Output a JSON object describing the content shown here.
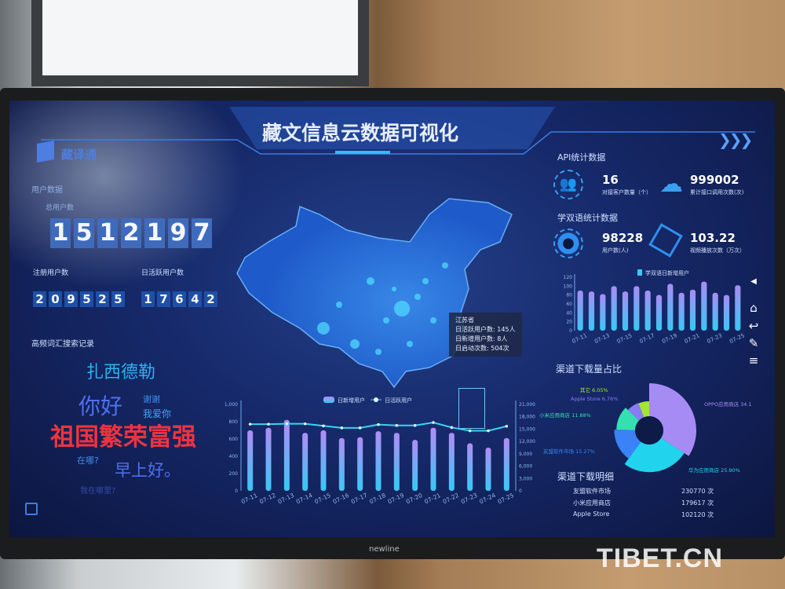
{
  "logo": {
    "text": "藏译通"
  },
  "title": "藏文信息云数据可视化",
  "user_data": {
    "heading": "用户数据",
    "total_label": "总用户数",
    "total": "1512197",
    "registered_label": "注册用户数",
    "registered": "209525",
    "daily_active_label": "日活跃用户数",
    "daily_active": "17642"
  },
  "word_cloud": {
    "heading": "高频词汇搜索记录",
    "words": [
      {
        "text": "扎西德勒",
        "color": "#2fb0f0"
      },
      {
        "text": "你好",
        "color": "#4f6ff0"
      },
      {
        "text": "谢谢",
        "color": "#3f8ff0"
      },
      {
        "text": "我爱你",
        "color": "#3fa8f5"
      },
      {
        "text": "祖国繁荣富强",
        "color": "#ee3340"
      },
      {
        "text": "在哪?",
        "color": "#3f8ff0"
      },
      {
        "text": "早上好。",
        "color": "#4f6ff0"
      },
      {
        "text": "我在哪里?",
        "color": "#3f5fcf"
      }
    ]
  },
  "map": {
    "tooltip": {
      "province": "江苏省",
      "active": "日活跃用户数: 145人",
      "new": "日新增用户数: 8人",
      "launches": "日启动次数: 504次"
    }
  },
  "api": {
    "heading": "API统计数据",
    "clients": "16",
    "clients_label": "对接客户数量（个）",
    "calls": "999002",
    "calls_label": "累计接口调用次数(次)"
  },
  "bilingual": {
    "heading": "学双语统计数据",
    "users": "98228",
    "users_label": "用户数(人)",
    "plays": "103.22",
    "plays_label": "视频播放次数（万次）"
  },
  "nav": {
    "collapse": "◀",
    "home": "⌂",
    "back": "↩",
    "edit": "✎",
    "menu": "≡"
  },
  "chart_data": [
    {
      "type": "bar",
      "legend": [
        "学双语日新增用户"
      ],
      "categories": [
        "07-11",
        "07-12",
        "07-13",
        "07-14",
        "07-15",
        "07-16",
        "07-17",
        "07-18",
        "07-19",
        "07-20",
        "07-21",
        "07-22",
        "07-23",
        "07-24",
        "07-25"
      ],
      "tick_labels_x": [
        "07-11",
        "07-13",
        "07-15",
        "07-17",
        "07-19",
        "07-21",
        "07-23",
        "07-25"
      ],
      "values": [
        90,
        88,
        82,
        100,
        88,
        100,
        90,
        80,
        105,
        85,
        92,
        110,
        85,
        80,
        102
      ],
      "ylim": [
        0,
        120
      ],
      "yticks": [
        "0",
        "20",
        "40",
        "60",
        "80",
        "100",
        "120"
      ],
      "colors": [
        "#a98cf5",
        "#38c8f5"
      ]
    },
    {
      "type": "bar+line",
      "categories": [
        "07-11",
        "07-12",
        "07-13",
        "07-14",
        "07-15",
        "07-16",
        "07-17",
        "07-18",
        "07-19",
        "07-20",
        "07-21",
        "07-22",
        "07-23",
        "07-24",
        "07-25"
      ],
      "series": [
        {
          "name": "日新增用户",
          "type": "bar",
          "axis": "left",
          "values": [
            700,
            730,
            820,
            670,
            700,
            610,
            620,
            690,
            670,
            590,
            730,
            670,
            550,
            500,
            610
          ]
        },
        {
          "name": "日活跃用户",
          "type": "line",
          "axis": "right",
          "values": [
            16200,
            16200,
            16300,
            16300,
            15800,
            15300,
            15300,
            16100,
            15900,
            15900,
            16600,
            15400,
            14600,
            14600,
            15700
          ]
        }
      ],
      "ylim_left": [
        0,
        1000
      ],
      "yticks_left": [
        "0",
        "200",
        "400",
        "600",
        "800",
        "1,000"
      ],
      "ylim_right": [
        0,
        21000
      ],
      "yticks_right": [
        "0",
        "3,000",
        "6,000",
        "9,000",
        "12,000",
        "15,000",
        "18,000",
        "21,000"
      ],
      "colors": {
        "bar_top": "#b08cf5",
        "bar_bottom": "#38c8f5",
        "line": "#38d6f0"
      }
    },
    {
      "type": "pie",
      "title": "渠道下载量占比",
      "variant": "rose-donut",
      "slices": [
        {
          "label": "OPPO应用商店",
          "value": 34.14,
          "text": "OPPO应用商店  34.14%",
          "color": "#a78bf5"
        },
        {
          "label": "华为应用商店",
          "value": 25.9,
          "text": "华为应用商店  25.90%",
          "color": "#22d3ee"
        },
        {
          "label": "友盟软件市场",
          "value": 15.27,
          "text": "友盟软件市场  15.27%",
          "color": "#3b82f6"
        },
        {
          "label": "小米应用商店",
          "value": 11.88,
          "text": "小米应用商店  11.88%",
          "color": "#34e0b0"
        },
        {
          "label": "Apple Store",
          "value": 6.76,
          "text": "Apple Store  6.76%",
          "color": "#8b7cf6"
        },
        {
          "label": "其它",
          "value": 6.05,
          "text": "其它  6.05%",
          "color": "#a3e635"
        }
      ]
    }
  ],
  "downloads": {
    "title": "渠道下载明细",
    "rows": [
      {
        "name": "友盟软件市场",
        "count": "230770 次"
      },
      {
        "name": "小米应用商店",
        "count": "179617 次"
      },
      {
        "name": "Apple Store",
        "count": "102120 次"
      }
    ]
  },
  "monitor": {
    "brand": "newline"
  },
  "watermark": "TIBET.CN"
}
